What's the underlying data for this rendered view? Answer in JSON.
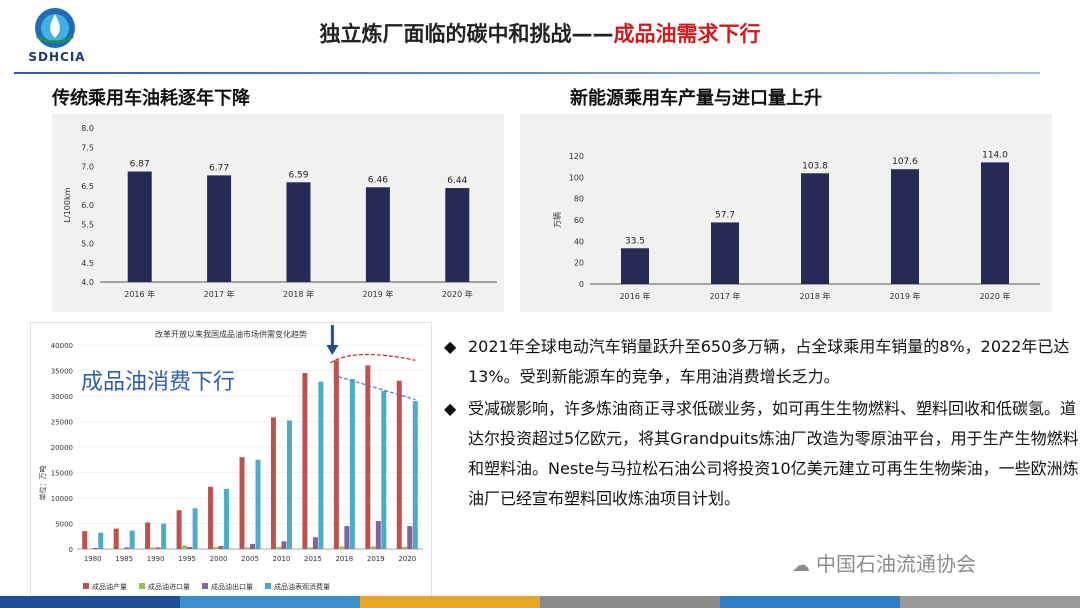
{
  "header": {
    "org": "SDHCIA",
    "title_main": "独立炼厂面临的碳中和挑战——",
    "title_highlight": "成品油需求下行"
  },
  "subheads": {
    "left": "传统乘用车油耗逐年下降",
    "right": "新能源乘用车产量与进口量上升"
  },
  "colors": {
    "bar_dark": "#262b55",
    "title_red": "#d21a1a",
    "bar_red": "#c0504d",
    "bar_green": "#9bbb59",
    "bar_purple": "#8064a2",
    "bar_teal": "#4bacc6"
  },
  "chart_data": [
    {
      "type": "bar",
      "categories": [
        "2016 年",
        "2017 年",
        "2018 年",
        "2019 年",
        "2020 年"
      ],
      "values": [
        6.87,
        6.77,
        6.59,
        6.46,
        6.44
      ],
      "ylabel": "L/100km",
      "ylim": [
        4.0,
        8.0
      ],
      "yticks": [
        "4.0",
        "4.5",
        "5.0",
        "5.5",
        "6.0",
        "6.5",
        "7.0",
        "7.5",
        "8.0"
      ],
      "data_labels": [
        "6.87",
        "6.77",
        "6.59",
        "6.46",
        "6.44"
      ],
      "grid": false
    },
    {
      "type": "bar",
      "categories": [
        "2016 年",
        "2017 年",
        "2018 年",
        "2019 年",
        "2020 年"
      ],
      "values": [
        33.5,
        57.7,
        103.8,
        107.6,
        114.0
      ],
      "ylabel": "万辆",
      "ylim": [
        0,
        120
      ],
      "yticks": [
        "0",
        "20",
        "40",
        "60",
        "80",
        "100",
        "120"
      ],
      "data_labels": [
        "33.5",
        "57.7",
        "103.8",
        "107.6",
        "114.0"
      ],
      "grid": false
    },
    {
      "type": "bar",
      "title": "改革开放以来我国成品油市场供需变化趋势",
      "annotation": "成品油消费下行",
      "ylabel": "单位：万吨",
      "categories": [
        "1980",
        "1985",
        "1990",
        "1995",
        "2000",
        "2005",
        "2010",
        "2015",
        "2018",
        "2019",
        "2020"
      ],
      "ylim": [
        0,
        40000
      ],
      "yticks": [
        "0",
        "5000",
        "10000",
        "15000",
        "20000",
        "25000",
        "30000",
        "35000",
        "40000"
      ],
      "legend_position": "bottom",
      "series": [
        {
          "name": "成品油产量",
          "values": [
            3500,
            4000,
            5200,
            7600,
            12200,
            18000,
            25800,
            34500,
            37000,
            36000,
            33000
          ]
        },
        {
          "name": "成品油进口量",
          "values": [
            50,
            100,
            300,
            700,
            400,
            300,
            400,
            300,
            500,
            500,
            400
          ]
        },
        {
          "name": "成品油出口量",
          "values": [
            200,
            300,
            300,
            400,
            600,
            1000,
            1500,
            2300,
            4500,
            5500,
            4500
          ]
        },
        {
          "name": "成品油表观消费量",
          "values": [
            3200,
            3600,
            5000,
            8000,
            11800,
            17500,
            25200,
            32800,
            33300,
            31000,
            29000
          ]
        }
      ]
    }
  ],
  "bullets": [
    {
      "marker": "◆",
      "text": "2021年全球电动汽车销量跃升至650多万辆，占全球乘用车销量的8%，2022年已达13%。受到新能源车的竞争，车用油消费增长乏力。"
    },
    {
      "marker": "◆",
      "text": "受减碳影响，许多炼油商正寻求低碳业务，如可再生生物燃料、塑料回收和低碳氢。道达尔投资超过5亿欧元，将其Grandpuits炼油厂改造为零原油平台，用于生产生物燃料和塑料油。Neste与马拉松石油公司将投资10亿美元建立可再生生物柴油，一些欧洲炼油厂已经宣布塑料回收炼油项目计划。"
    }
  ],
  "watermark": "中国石油流通协会",
  "footer_colors": [
    "#1f4e96",
    "#3b8fd1",
    "#e8a825",
    "#8a8a8a",
    "#2f7fc6",
    "#9a9a9a"
  ]
}
